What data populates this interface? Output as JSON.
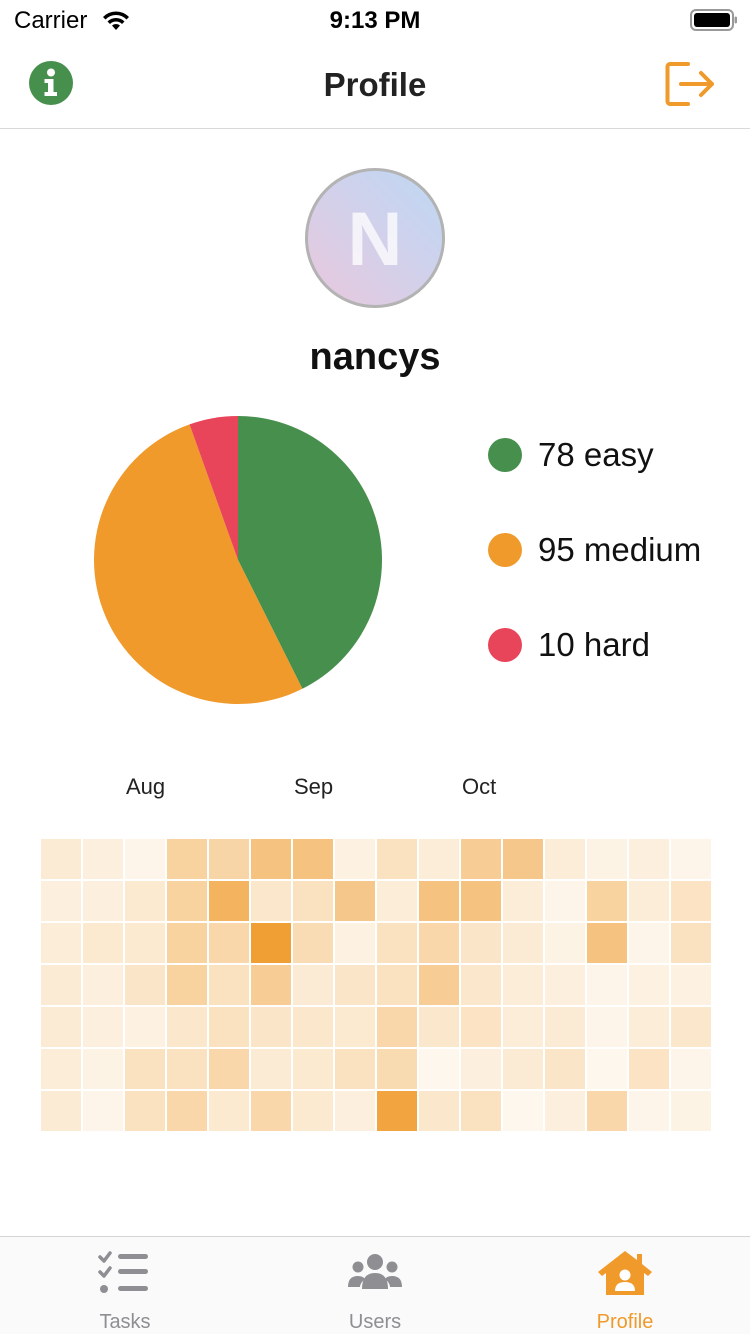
{
  "status_bar": {
    "carrier": "Carrier",
    "time": "9:13 PM"
  },
  "nav": {
    "title": "Profile"
  },
  "profile": {
    "avatar_letter": "N",
    "username": "nancys"
  },
  "colors": {
    "accent": "#ef9a2a",
    "easy": "#478f4d",
    "medium": "#ef9a2a",
    "hard": "#e8445a",
    "info": "#478f4d"
  },
  "legend": [
    {
      "label": "78 easy",
      "color": "#478f4d"
    },
    {
      "label": "95 medium",
      "color": "#ef9a2a"
    },
    {
      "label": "10 hard",
      "color": "#e8445a"
    }
  ],
  "chart_data": [
    {
      "type": "pie",
      "categories": [
        "easy",
        "medium",
        "hard"
      ],
      "values": [
        78,
        95,
        10
      ],
      "colors": [
        "#478f4d",
        "#ef9a2a",
        "#e8445a"
      ]
    },
    {
      "type": "heatmap",
      "column_labels": [
        "Aug",
        "Sep",
        "Oct"
      ],
      "color_scale": [
        "#ffffff",
        "#ef9a2a"
      ],
      "value_range": [
        0,
        1
      ],
      "rows": [
        [
          0.2,
          0.16,
          0.1,
          0.45,
          0.42,
          0.6,
          0.6,
          0.14,
          0.3,
          0.18,
          0.5,
          0.55,
          0.18,
          0.12,
          0.16,
          0.1
        ],
        [
          0.16,
          0.16,
          0.22,
          0.45,
          0.75,
          0.24,
          0.3,
          0.55,
          0.18,
          0.6,
          0.6,
          0.18,
          0.1,
          0.45,
          0.18,
          0.28
        ],
        [
          0.18,
          0.22,
          0.22,
          0.45,
          0.4,
          0.95,
          0.35,
          0.14,
          0.3,
          0.4,
          0.26,
          0.2,
          0.12,
          0.6,
          0.1,
          0.3
        ],
        [
          0.2,
          0.16,
          0.26,
          0.45,
          0.3,
          0.5,
          0.2,
          0.26,
          0.3,
          0.5,
          0.24,
          0.18,
          0.16,
          0.1,
          0.14,
          0.14
        ],
        [
          0.2,
          0.16,
          0.14,
          0.24,
          0.3,
          0.26,
          0.24,
          0.22,
          0.4,
          0.24,
          0.28,
          0.18,
          0.2,
          0.1,
          0.18,
          0.24
        ],
        [
          0.18,
          0.12,
          0.3,
          0.3,
          0.4,
          0.2,
          0.22,
          0.3,
          0.36,
          0.08,
          0.16,
          0.2,
          0.26,
          0.08,
          0.28,
          0.1
        ],
        [
          0.2,
          0.1,
          0.3,
          0.4,
          0.22,
          0.4,
          0.22,
          0.16,
          0.9,
          0.24,
          0.3,
          0.08,
          0.16,
          0.4,
          0.1,
          0.12
        ]
      ]
    }
  ],
  "tabs": [
    {
      "label": "Tasks",
      "icon": "tasks-list-icon",
      "active": false
    },
    {
      "label": "Users",
      "icon": "users-group-icon",
      "active": false
    },
    {
      "label": "Profile",
      "icon": "home-profile-icon",
      "active": true
    }
  ]
}
